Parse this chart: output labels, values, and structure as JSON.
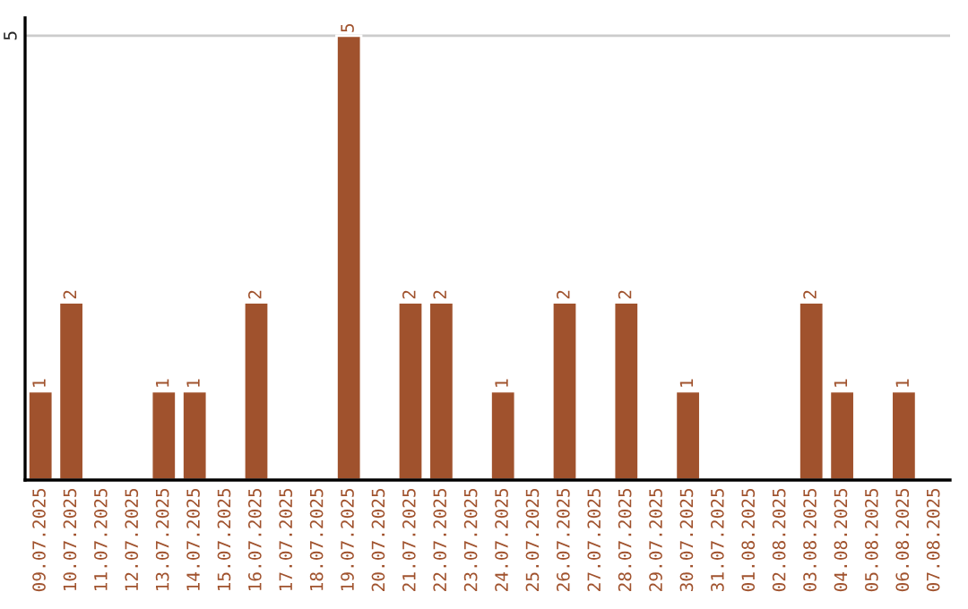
{
  "chart_data": {
    "type": "bar",
    "categories": [
      "09.07.2025",
      "10.07.2025",
      "11.07.2025",
      "12.07.2025",
      "13.07.2025",
      "14.07.2025",
      "15.07.2025",
      "16.07.2025",
      "17.07.2025",
      "18.07.2025",
      "19.07.2025",
      "20.07.2025",
      "21.07.2025",
      "22.07.2025",
      "23.07.2025",
      "24.07.2025",
      "25.07.2025",
      "26.07.2025",
      "27.07.2025",
      "28.07.2025",
      "29.07.2025",
      "30.07.2025",
      "31.07.2025",
      "01.08.2025",
      "02.08.2025",
      "03.08.2025",
      "04.08.2025",
      "05.08.2025",
      "06.08.2025",
      "07.08.2025"
    ],
    "values": [
      1,
      2,
      null,
      null,
      1,
      1,
      null,
      2,
      null,
      null,
      5,
      null,
      2,
      2,
      null,
      1,
      null,
      2,
      null,
      2,
      null,
      1,
      null,
      null,
      null,
      2,
      1,
      null,
      1,
      null
    ],
    "value_labels": [
      "1",
      "2",
      null,
      null,
      "1",
      "1",
      null,
      "2",
      null,
      null,
      "5",
      null,
      "2",
      "2",
      null,
      "1",
      null,
      "2",
      null,
      "2",
      null,
      "1",
      null,
      null,
      null,
      "2",
      "1",
      null,
      "1",
      null
    ],
    "color": "#a0522d",
    "ylim": [
      0,
      5.2
    ],
    "yticks": [
      5
    ],
    "grid": "y"
  }
}
